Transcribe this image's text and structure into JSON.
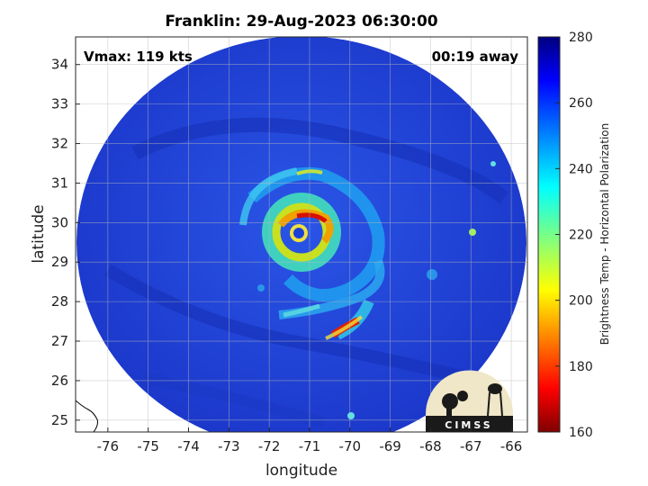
{
  "title": "Franklin: 29-Aug-2023 06:30:00",
  "vmax_label": "Vmax: 119 kts",
  "time_away": "00:19 away",
  "x_axis": {
    "label": "longitude",
    "range": [
      -76.8,
      -65.6
    ],
    "ticks": [
      -76,
      -75,
      -74,
      -73,
      -72,
      -71,
      -70,
      -69,
      -68,
      -67,
      -66
    ]
  },
  "y_axis": {
    "label": "latitude",
    "range": [
      24.7,
      34.7
    ],
    "ticks": [
      25,
      26,
      27,
      28,
      29,
      30,
      31,
      32,
      33,
      34
    ]
  },
  "colorbar": {
    "label": "Brightness Temp - Horizontal Polarization",
    "range": [
      160,
      280
    ],
    "ticks": [
      160,
      180,
      200,
      220,
      240,
      260,
      280
    ],
    "colormap": "jet"
  },
  "logo_text": "CIMSS",
  "colors": {
    "background_blue": "#1f3fd8",
    "eyewall_red": "#cc1100",
    "outer_band_yellow": "#e8d000"
  },
  "storm_center": {
    "lon": -71.0,
    "lat": 29.75
  }
}
